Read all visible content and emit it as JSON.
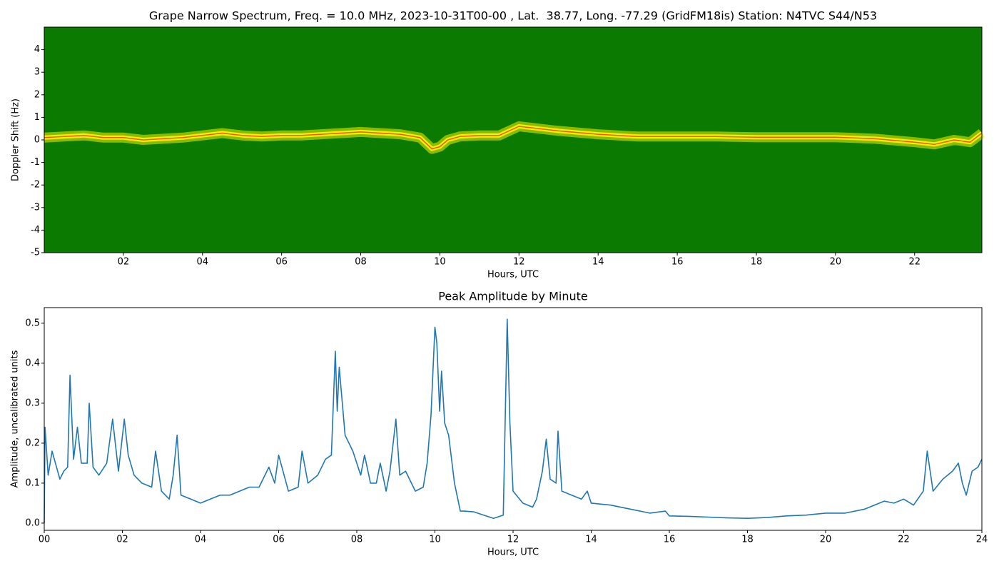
{
  "chart_data": [
    {
      "type": "spectrogram",
      "title": "Grape Narrow Spectrum, Freq. = 10.0 MHz, 2023-10-31T00-00 , Lat.  38.77, Long. -77.29 (GridFM18is) Station: N4TVC S44/N53",
      "x_label": "Hours, UTC",
      "y_label": "Doppler Shift (Hz)",
      "xlim": [
        0,
        23.7
      ],
      "ylim": [
        -5,
        5
      ],
      "xticks": [
        {
          "value": 2,
          "label": "02"
        },
        {
          "value": 4,
          "label": "04"
        },
        {
          "value": 6,
          "label": "06"
        },
        {
          "value": 8,
          "label": "08"
        },
        {
          "value": 10,
          "label": "10"
        },
        {
          "value": 12,
          "label": "12"
        },
        {
          "value": 14,
          "label": "14"
        },
        {
          "value": 16,
          "label": "16"
        },
        {
          "value": 18,
          "label": "18"
        },
        {
          "value": 20,
          "label": "20"
        },
        {
          "value": 22,
          "label": "22"
        }
      ],
      "yticks": [
        -5,
        -4,
        -3,
        -2,
        -1,
        0,
        1,
        2,
        3,
        4
      ],
      "background_color": "#0a7a00",
      "trace_color": "#f2f200",
      "core_color": "#f05a1e",
      "x": [
        0,
        0.5,
        1,
        1.5,
        2,
        2.5,
        3,
        3.5,
        4,
        4.5,
        5,
        5.5,
        6,
        6.5,
        7,
        7.5,
        8,
        8.5,
        9,
        9.5,
        9.8,
        10,
        10.2,
        10.5,
        11,
        11.5,
        12,
        13,
        14,
        15,
        16,
        17,
        18,
        19,
        20,
        21,
        22,
        22.5,
        23,
        23.4,
        23.7
      ],
      "values": [
        0.1,
        0.15,
        0.2,
        0.1,
        0.1,
        0.0,
        0.05,
        0.1,
        0.2,
        0.3,
        0.2,
        0.15,
        0.2,
        0.2,
        0.25,
        0.3,
        0.35,
        0.3,
        0.25,
        0.1,
        -0.4,
        -0.3,
        0.0,
        0.15,
        0.2,
        0.2,
        0.6,
        0.4,
        0.25,
        0.15,
        0.15,
        0.15,
        0.12,
        0.12,
        0.12,
        0.05,
        -0.1,
        -0.2,
        0.0,
        -0.1,
        0.3
      ]
    },
    {
      "type": "line",
      "title": "Peak Amplitude by Minute",
      "x_label": "Hours, UTC",
      "y_label": "Amplitude, uncalibrated units",
      "color": "#1f77b4",
      "xlim": [
        0,
        24
      ],
      "ylim": [
        -0.018,
        0.539
      ],
      "xticks": [
        {
          "value": 0,
          "label": "00"
        },
        {
          "value": 2,
          "label": "02"
        },
        {
          "value": 4,
          "label": "04"
        },
        {
          "value": 6,
          "label": "06"
        },
        {
          "value": 8,
          "label": "08"
        },
        10,
        12,
        14,
        16,
        18,
        20,
        22,
        24
      ],
      "yticks": [
        {
          "value": 0,
          "label": "0.0"
        },
        0.1,
        0.2,
        0.3,
        0.4,
        0.5
      ],
      "x": [
        0.0,
        0.02,
        0.1,
        0.2,
        0.4,
        0.5,
        0.6,
        0.66,
        0.75,
        0.85,
        0.95,
        1.1,
        1.15,
        1.25,
        1.4,
        1.6,
        1.75,
        1.9,
        2.05,
        2.15,
        2.3,
        2.5,
        2.75,
        2.85,
        3.0,
        3.2,
        3.3,
        3.4,
        3.5,
        3.75,
        4.0,
        4.25,
        4.5,
        4.75,
        5.0,
        5.25,
        5.5,
        5.75,
        5.9,
        6.0,
        6.25,
        6.5,
        6.6,
        6.75,
        7.0,
        7.2,
        7.35,
        7.45,
        7.5,
        7.55,
        7.7,
        7.9,
        8.1,
        8.2,
        8.35,
        8.5,
        8.6,
        8.75,
        8.85,
        9.0,
        9.1,
        9.25,
        9.5,
        9.7,
        9.8,
        9.9,
        10.0,
        10.05,
        10.12,
        10.17,
        10.25,
        10.35,
        10.5,
        10.65,
        10.75,
        11.0,
        11.25,
        11.5,
        11.75,
        11.85,
        11.92,
        12.0,
        12.25,
        12.5,
        12.6,
        12.75,
        12.85,
        12.95,
        13.1,
        13.15,
        13.25,
        13.5,
        13.75,
        13.9,
        14.0,
        14.5,
        15.0,
        15.5,
        15.9,
        16.0,
        16.5,
        17.0,
        17.5,
        18.0,
        18.5,
        19.0,
        19.5,
        20.0,
        20.5,
        21.0,
        21.25,
        21.5,
        21.75,
        22.0,
        22.25,
        22.5,
        22.6,
        22.75,
        23.0,
        23.25,
        23.4,
        23.5,
        23.6,
        23.75,
        23.9,
        24.0
      ],
      "values": [
        0.0,
        0.24,
        0.12,
        0.18,
        0.11,
        0.13,
        0.14,
        0.37,
        0.16,
        0.24,
        0.15,
        0.15,
        0.3,
        0.14,
        0.12,
        0.15,
        0.26,
        0.13,
        0.26,
        0.17,
        0.12,
        0.1,
        0.09,
        0.18,
        0.08,
        0.06,
        0.12,
        0.22,
        0.07,
        0.06,
        0.05,
        0.06,
        0.07,
        0.07,
        0.08,
        0.09,
        0.09,
        0.14,
        0.1,
        0.17,
        0.08,
        0.09,
        0.18,
        0.1,
        0.12,
        0.16,
        0.17,
        0.43,
        0.28,
        0.39,
        0.22,
        0.18,
        0.12,
        0.17,
        0.1,
        0.1,
        0.15,
        0.08,
        0.13,
        0.26,
        0.12,
        0.13,
        0.08,
        0.09,
        0.15,
        0.27,
        0.49,
        0.45,
        0.28,
        0.38,
        0.25,
        0.22,
        0.1,
        0.03,
        0.03,
        0.028,
        0.02,
        0.012,
        0.02,
        0.51,
        0.25,
        0.08,
        0.05,
        0.04,
        0.06,
        0.13,
        0.21,
        0.11,
        0.1,
        0.23,
        0.08,
        0.07,
        0.06,
        0.08,
        0.05,
        0.045,
        0.035,
        0.025,
        0.03,
        0.018,
        0.017,
        0.015,
        0.013,
        0.012,
        0.014,
        0.018,
        0.02,
        0.025,
        0.025,
        0.035,
        0.045,
        0.055,
        0.05,
        0.06,
        0.045,
        0.08,
        0.18,
        0.08,
        0.11,
        0.13,
        0.15,
        0.1,
        0.07,
        0.13,
        0.14,
        0.16
      ]
    }
  ]
}
